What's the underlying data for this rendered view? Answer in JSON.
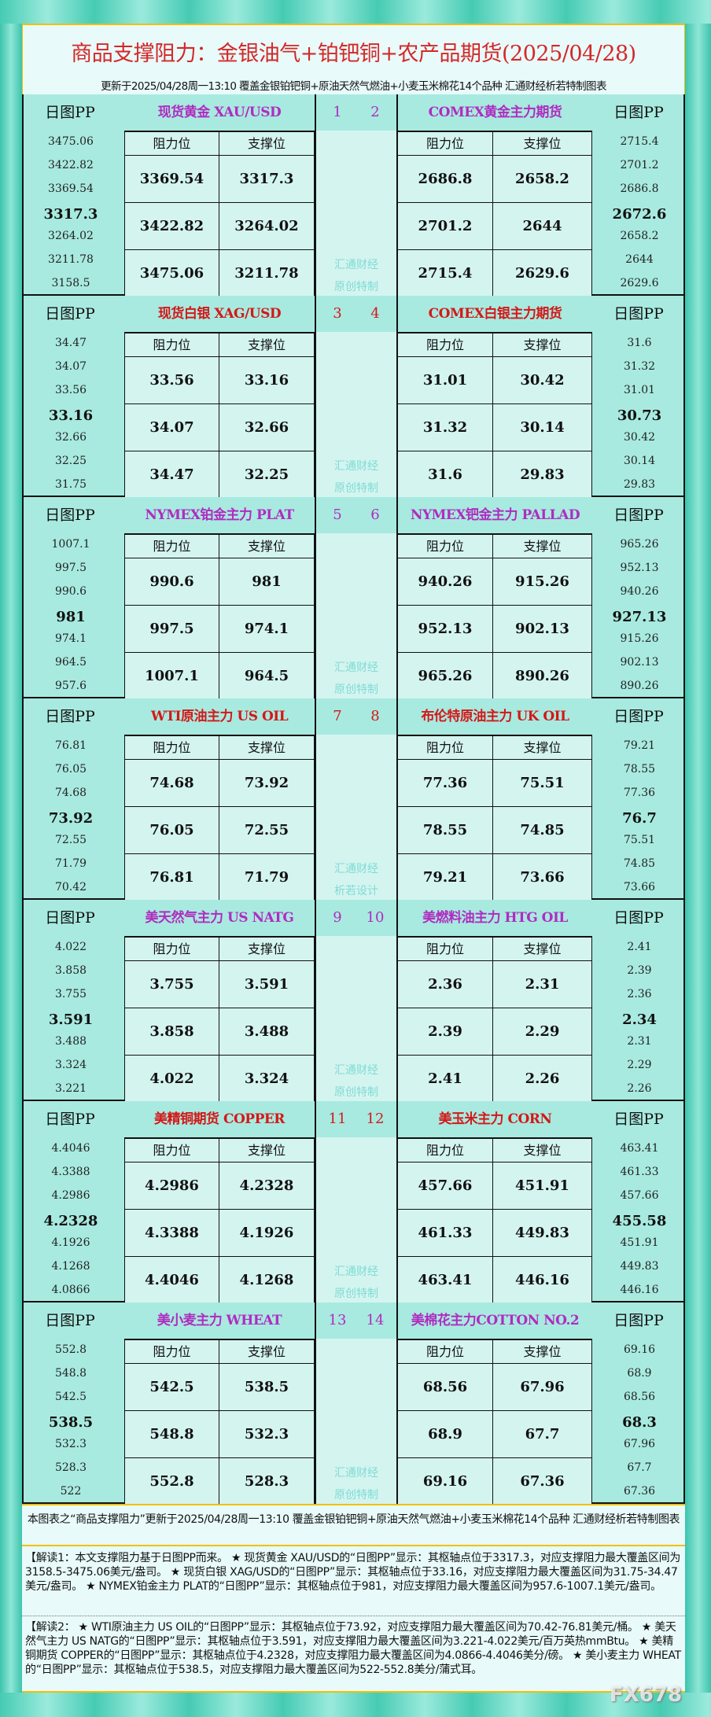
{
  "header": {
    "title": "商品支撑阻力：金银油气+铂钯铜+农产品期货(2025/04/28)",
    "subtitle": "更新于2025/04/28周一13:10  覆盖金银铂钯铜+原油天然气燃油+小麦玉米棉花14个品种  汇通财经析若特制图表"
  },
  "labels": {
    "pp_header": "日图PP",
    "resistance": "阻力位",
    "support": "支撑位"
  },
  "colors": {
    "purple": "#b02cc0",
    "red": "#d41818",
    "frame": "#3cc4ad",
    "cell": "#d4f4f0",
    "band": "#a8eae0"
  },
  "sections": [
    {
      "nums": [
        "1",
        "2"
      ],
      "watermark": [
        "汇通财经",
        "原创特制"
      ],
      "left": {
        "title": "现货黄金 XAU/USD",
        "color": "#b02cc0",
        "pp": [
          "3475.06",
          "3422.82",
          "3369.54",
          "3317.3",
          "3264.02",
          "3211.78",
          "3158.5"
        ],
        "rows": [
          [
            "3369.54",
            "3317.3"
          ],
          [
            "3422.82",
            "3264.02"
          ],
          [
            "3475.06",
            "3211.78"
          ]
        ]
      },
      "right": {
        "title": "COMEX黄金主力期货",
        "color": "#b02cc0",
        "pp": [
          "2715.4",
          "2701.2",
          "2686.8",
          "2672.6",
          "2658.2",
          "2644",
          "2629.6"
        ],
        "rows": [
          [
            "2686.8",
            "2658.2"
          ],
          [
            "2701.2",
            "2644"
          ],
          [
            "2715.4",
            "2629.6"
          ]
        ]
      }
    },
    {
      "nums": [
        "3",
        "4"
      ],
      "watermark": [
        "汇通财经",
        "原创特制"
      ],
      "left": {
        "title": "现货白银 XAG/USD",
        "color": "#d41818",
        "pp": [
          "34.47",
          "34.07",
          "33.56",
          "33.16",
          "32.66",
          "32.25",
          "31.75"
        ],
        "rows": [
          [
            "33.56",
            "33.16"
          ],
          [
            "34.07",
            "32.66"
          ],
          [
            "34.47",
            "32.25"
          ]
        ]
      },
      "right": {
        "title": "COMEX白银主力期货",
        "color": "#d41818",
        "pp": [
          "31.6",
          "31.32",
          "31.01",
          "30.73",
          "30.42",
          "30.14",
          "29.83"
        ],
        "rows": [
          [
            "31.01",
            "30.42"
          ],
          [
            "31.32",
            "30.14"
          ],
          [
            "31.6",
            "29.83"
          ]
        ]
      }
    },
    {
      "nums": [
        "5",
        "6"
      ],
      "watermark": [
        "汇通财经",
        "原创特制"
      ],
      "left": {
        "title": "NYMEX铂金主力 PLAT",
        "color": "#b02cc0",
        "pp": [
          "1007.1",
          "997.5",
          "990.6",
          "981",
          "974.1",
          "964.5",
          "957.6"
        ],
        "rows": [
          [
            "990.6",
            "981"
          ],
          [
            "997.5",
            "974.1"
          ],
          [
            "1007.1",
            "964.5"
          ]
        ]
      },
      "right": {
        "title": "NYMEX钯金主力 PALLAD",
        "color": "#b02cc0",
        "pp": [
          "965.26",
          "952.13",
          "940.26",
          "927.13",
          "915.26",
          "902.13",
          "890.26"
        ],
        "rows": [
          [
            "940.26",
            "915.26"
          ],
          [
            "952.13",
            "902.13"
          ],
          [
            "965.26",
            "890.26"
          ]
        ]
      }
    },
    {
      "nums": [
        "7",
        "8"
      ],
      "watermark": [
        "汇通财经",
        "析若设计"
      ],
      "left": {
        "title": "WTI原油主力 US OIL",
        "color": "#d41818",
        "pp": [
          "76.81",
          "76.05",
          "74.68",
          "73.92",
          "72.55",
          "71.79",
          "70.42"
        ],
        "rows": [
          [
            "74.68",
            "73.92"
          ],
          [
            "76.05",
            "72.55"
          ],
          [
            "76.81",
            "71.79"
          ]
        ]
      },
      "right": {
        "title": "布伦特原油主力 UK OIL",
        "color": "#d41818",
        "pp": [
          "79.21",
          "78.55",
          "77.36",
          "76.7",
          "75.51",
          "74.85",
          "73.66"
        ],
        "rows": [
          [
            "77.36",
            "75.51"
          ],
          [
            "78.55",
            "74.85"
          ],
          [
            "79.21",
            "73.66"
          ]
        ]
      }
    },
    {
      "nums": [
        "9",
        "10"
      ],
      "watermark": [
        "汇通财经",
        "原创特制"
      ],
      "left": {
        "title": "美天然气主力 US NATG",
        "color": "#b02cc0",
        "pp": [
          "4.022",
          "3.858",
          "3.755",
          "3.591",
          "3.488",
          "3.324",
          "3.221"
        ],
        "rows": [
          [
            "3.755",
            "3.591"
          ],
          [
            "3.858",
            "3.488"
          ],
          [
            "4.022",
            "3.324"
          ]
        ]
      },
      "right": {
        "title": "美燃料油主力 HTG OIL",
        "color": "#b02cc0",
        "pp": [
          "2.41",
          "2.39",
          "2.36",
          "2.34",
          "2.31",
          "2.29",
          "2.26"
        ],
        "rows": [
          [
            "2.36",
            "2.31"
          ],
          [
            "2.39",
            "2.29"
          ],
          [
            "2.41",
            "2.26"
          ]
        ]
      }
    },
    {
      "nums": [
        "11",
        "12"
      ],
      "watermark": [
        "汇通财经",
        "原创特制"
      ],
      "left": {
        "title": "美精铜期货 COPPER",
        "color": "#d41818",
        "pp": [
          "4.4046",
          "4.3388",
          "4.2986",
          "4.2328",
          "4.1926",
          "4.1268",
          "4.0866"
        ],
        "rows": [
          [
            "4.2986",
            "4.2328"
          ],
          [
            "4.3388",
            "4.1926"
          ],
          [
            "4.4046",
            "4.1268"
          ]
        ]
      },
      "right": {
        "title": "美玉米主力 CORN",
        "color": "#d41818",
        "pp": [
          "463.41",
          "461.33",
          "457.66",
          "455.58",
          "451.91",
          "449.83",
          "446.16"
        ],
        "rows": [
          [
            "457.66",
            "451.91"
          ],
          [
            "461.33",
            "449.83"
          ],
          [
            "463.41",
            "446.16"
          ]
        ]
      }
    },
    {
      "nums": [
        "13",
        "14"
      ],
      "watermark": [
        "汇通财经",
        "原创特制"
      ],
      "left": {
        "title": "美小麦主力 WHEAT",
        "color": "#b02cc0",
        "pp": [
          "552.8",
          "548.8",
          "542.5",
          "538.5",
          "532.3",
          "528.3",
          "522"
        ],
        "rows": [
          [
            "542.5",
            "538.5"
          ],
          [
            "548.8",
            "532.3"
          ],
          [
            "552.8",
            "528.3"
          ]
        ]
      },
      "right": {
        "title": "美棉花主力COTTON NO.2",
        "color": "#b02cc0",
        "pp": [
          "69.16",
          "68.9",
          "68.56",
          "68.3",
          "67.96",
          "67.7",
          "67.36"
        ],
        "rows": [
          [
            "68.56",
            "67.96"
          ],
          [
            "68.9",
            "67.7"
          ],
          [
            "69.16",
            "67.36"
          ]
        ]
      }
    }
  ],
  "footer": {
    "note": "本图表之“商品支撑阻力”更新于2025/04/28周一13:10 覆盖金银铂钯铜+原油天然气燃油+小麦玉米棉花14个品种 汇通财经析若特制图表",
    "interp1": "【解读1：本文支撑阻力基于日图PP而来。 ★ 现货黄金 XAU/USD的“日图PP”显示：其枢轴点位于3317.3，对应支撑阻力最大覆盖区间为3158.5-3475.06美元/盎司。 ★ 现货白银 XAG/USD的“日图PP”显示：其枢轴点位于33.16，对应支撑阻力最大覆盖区间为31.75-34.47美元/盎司。 ★ NYMEX铂金主力 PLAT的“日图PP”显示：其枢轴点位于981，对应支撑阻力最大覆盖区间为957.6-1007.1美元/盎司。",
    "interp2": "【解读2： ★ WTI原油主力 US OIL的“日图PP”显示：其枢轴点位于73.92，对应支撑阻力最大覆盖区间为70.42-76.81美元/桶。 ★ 美天然气主力 US NATG的“日图PP”显示：其枢轴点位于3.591，对应支撑阻力最大覆盖区间为3.221-4.022美元/百万英热mmBtu。 ★ 美精铜期货 COPPER的“日图PP”显示：其枢轴点位于4.2328，对应支撑阻力最大覆盖区间为4.0866-4.4046美分/磅。 ★ 美小麦主力 WHEAT的“日图PP”显示：其枢轴点位于538.5，对应支撑阻力最大覆盖区间为522-552.8美分/蒲式耳。",
    "watermark": "FX678"
  }
}
